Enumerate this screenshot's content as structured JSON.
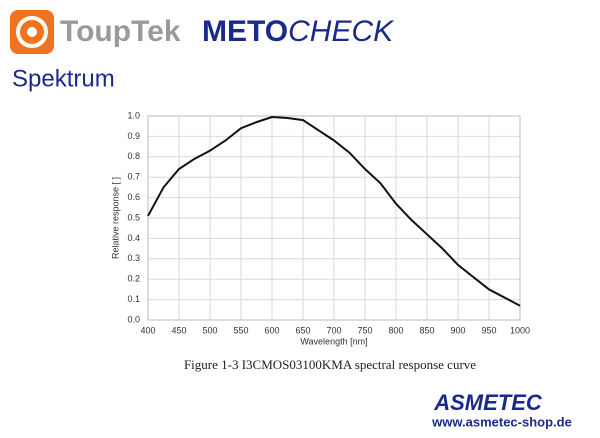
{
  "header": {
    "brand": "ToupTek",
    "product_bold": "METO",
    "product_italic": "CHECK",
    "heading": "Spektrum"
  },
  "footer": {
    "company": "ASMETEC",
    "url": "www.asmetec-shop.de"
  },
  "chart_data": {
    "type": "line",
    "caption": "Figure 1-3 I3CMOS03100KMA spectral response curve",
    "x_label": "Wavelength [nm]",
    "y_label": "Relative response [ ]",
    "x": [
      400,
      425,
      450,
      475,
      500,
      525,
      550,
      575,
      600,
      625,
      650,
      675,
      700,
      725,
      750,
      775,
      800,
      825,
      850,
      875,
      900,
      925,
      950,
      975,
      1000
    ],
    "series": [
      {
        "color": "#111111",
        "values": [
          0.51,
          0.65,
          0.74,
          0.79,
          0.83,
          0.88,
          0.94,
          0.97,
          0.995,
          0.99,
          0.98,
          0.93,
          0.88,
          0.82,
          0.74,
          0.67,
          0.57,
          0.49,
          0.42,
          0.35,
          0.27,
          0.21,
          0.15,
          0.11,
          0.07
        ]
      }
    ],
    "xlim": [
      400,
      1000
    ],
    "ylim": [
      0,
      1
    ],
    "xticks": [
      400,
      450,
      500,
      550,
      600,
      650,
      700,
      750,
      800,
      850,
      900,
      950,
      1000
    ],
    "yticks": [
      {
        "value": 0,
        "label": "0.0"
      },
      0.1,
      0.2,
      0.3,
      0.4,
      0.5,
      0.6,
      0.7,
      0.8,
      0.9,
      {
        "value": 1,
        "label": "1.0"
      }
    ],
    "grid": true
  }
}
